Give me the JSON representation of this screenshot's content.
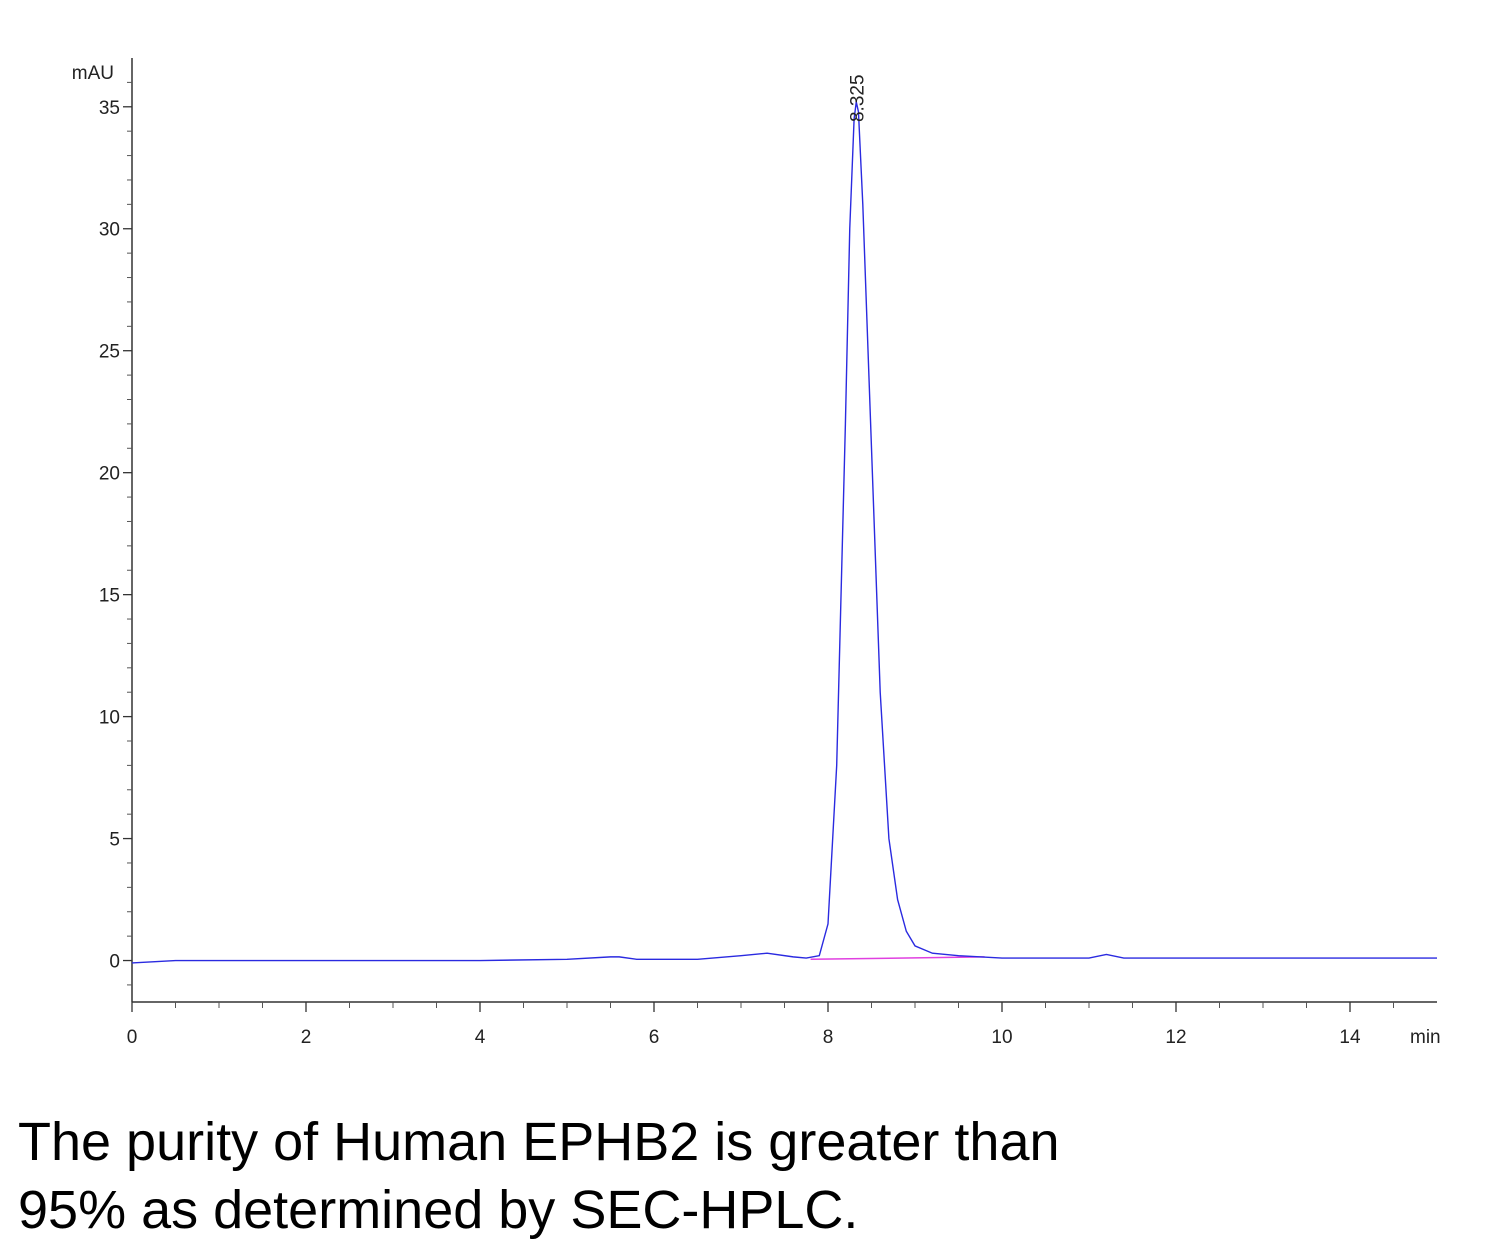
{
  "chart_data": {
    "type": "line",
    "ylabel": "mAU",
    "xlabel": "min",
    "x": [
      0,
      0.5,
      1,
      2,
      3,
      4,
      5,
      5.5,
      5.6,
      5.8,
      6,
      6.5,
      7,
      7.3,
      7.6,
      7.75,
      7.9,
      8.0,
      8.1,
      8.2,
      8.25,
      8.3,
      8.325,
      8.35,
      8.4,
      8.5,
      8.6,
      8.7,
      8.8,
      8.9,
      9.0,
      9.2,
      9.5,
      10,
      11,
      11.2,
      11.4,
      11.6,
      12,
      13,
      14,
      15
    ],
    "series": [
      {
        "color": "#2a2ae0",
        "values": [
          -0.1,
          0,
          0,
          0,
          0,
          0,
          0.05,
          0.15,
          0.15,
          0.05,
          0.05,
          0.05,
          0.2,
          0.3,
          0.15,
          0.1,
          0.2,
          1.5,
          8,
          22,
          30,
          34.5,
          35.2,
          34.8,
          31,
          21,
          11,
          5,
          2.5,
          1.2,
          0.6,
          0.3,
          0.2,
          0.1,
          0.1,
          0.25,
          0.1,
          0.1,
          0.1,
          0.1,
          0.1,
          0.1
        ]
      }
    ],
    "baseline": {
      "color": "#e040e0",
      "x": [
        7.8,
        9.8
      ],
      "values": [
        0.05,
        0.15
      ]
    },
    "annotations": [
      {
        "label": "8.325",
        "x": 8.325
      }
    ],
    "xlim": [
      0,
      15
    ],
    "ylim": [
      -1.7,
      37
    ],
    "xticks": [
      0,
      2,
      4,
      6,
      8,
      10,
      12,
      14
    ],
    "yticks": [
      0,
      5,
      10,
      15,
      20,
      25,
      30,
      35
    ],
    "xminorticks": [
      0.5,
      1,
      1.5,
      2.5,
      3,
      3.5,
      4.5,
      5,
      5.5,
      6.5,
      7,
      7.5,
      8.5,
      9,
      9.5,
      10.5,
      11,
      11.5,
      12.5,
      13,
      13.5,
      14.5
    ],
    "yminorticks": [
      -1,
      1,
      2,
      3,
      4,
      6,
      7,
      8,
      9,
      11,
      12,
      13,
      14,
      16,
      17,
      18,
      19,
      21,
      22,
      23,
      24,
      26,
      27,
      28,
      29,
      31,
      32,
      33,
      34,
      36
    ]
  },
  "caption": [
    "The purity of Human EPHB2 is greater than",
    "95% as determined by SEC-HPLC."
  ]
}
